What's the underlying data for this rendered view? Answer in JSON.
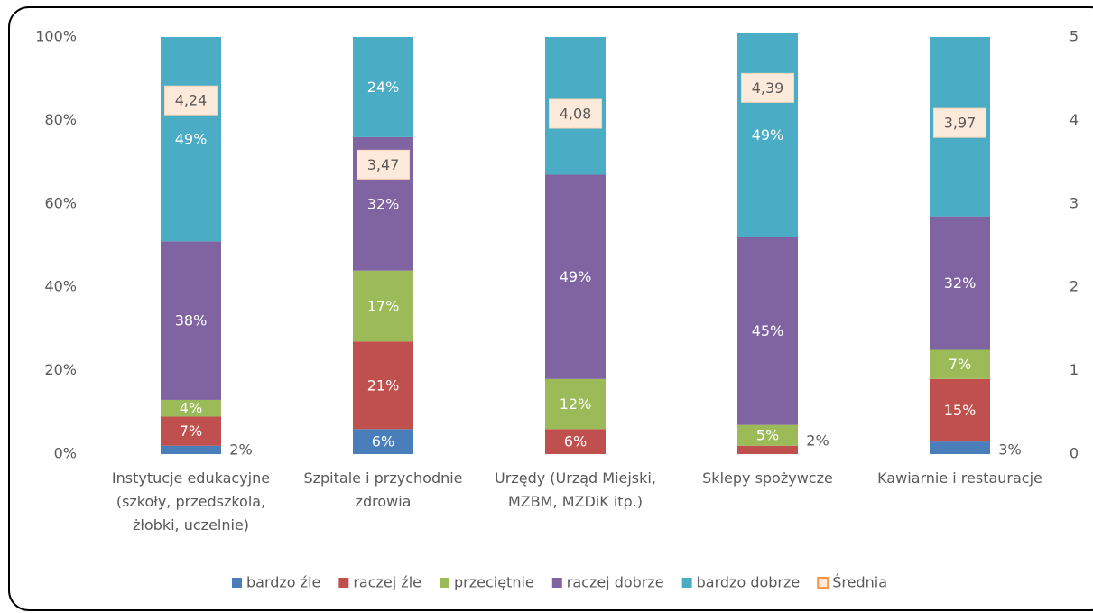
{
  "chart_data": {
    "type": "bar",
    "stacked": true,
    "categories": [
      "Instytucje edukacyjne (szkoły, przedszkola, żłobki, uczelnie)",
      "Szpitale i przychodnie zdrowia",
      "Urzędy (Urząd Miejski, MZBM, MZDiK itp.)",
      "Sklepy spożywcze",
      "Kawiarnie i restauracje"
    ],
    "series": [
      {
        "name": "bardzo źle",
        "color": "#4a7ebb",
        "values": [
          2,
          6,
          null,
          null,
          3
        ],
        "value_labels": [
          "2%",
          "6%",
          null,
          null,
          "3%"
        ]
      },
      {
        "name": "raczej źle",
        "color": "#c0504d",
        "values": [
          7,
          21,
          6,
          2,
          15
        ],
        "value_labels": [
          "7%",
          "21%",
          "6%",
          "2%",
          "15%"
        ]
      },
      {
        "name": "przeciętnie",
        "color": "#9bbb59",
        "values": [
          4,
          17,
          12,
          5,
          7
        ],
        "value_labels": [
          "4%",
          "17%",
          "12%",
          "5%",
          "7%"
        ]
      },
      {
        "name": "raczej dobrze",
        "color": "#8064a2",
        "values": [
          38,
          32,
          49,
          45,
          32
        ],
        "value_labels": [
          "38%",
          "32%",
          "49%",
          "45%",
          "32%"
        ]
      },
      {
        "name": "bardzo dobrze",
        "color": "#4bacc6",
        "values": [
          49,
          24,
          33,
          49,
          43
        ],
        "value_labels": [
          "49%",
          "24%",
          "33%",
          "49%",
          "43%"
        ]
      },
      {
        "name": "Średnia",
        "color": "#f79646",
        "axis": "y2",
        "values": [
          4.24,
          3.47,
          4.08,
          4.39,
          3.97
        ],
        "value_labels": [
          "4,24",
          "3,47",
          "4,08",
          "4,39",
          "3,97"
        ]
      }
    ],
    "ylim": [
      0,
      100
    ],
    "yticks": [
      {
        "value": 0,
        "label": "0%"
      },
      {
        "value": 20,
        "label": "20%"
      },
      {
        "value": 40,
        "label": "40%"
      },
      {
        "value": 60,
        "label": "60%"
      },
      {
        "value": 80,
        "label": "80%"
      },
      {
        "value": 100,
        "label": "100%"
      }
    ],
    "y2lim": [
      0,
      5
    ],
    "y2ticks": [
      0,
      1,
      2,
      3,
      4,
      5
    ],
    "legend": "bottom"
  }
}
